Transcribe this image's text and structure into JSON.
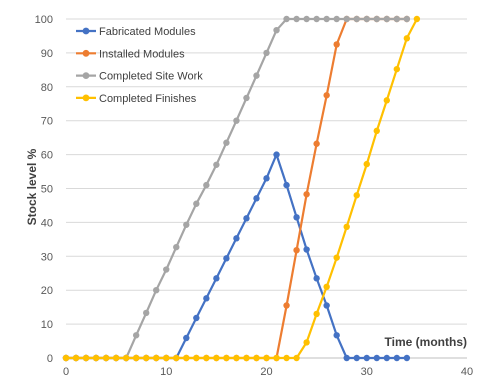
{
  "chart_data": {
    "type": "line",
    "title": "",
    "xlabel": "Time (months)",
    "ylabel": "Stock level %",
    "xlim": [
      0,
      40
    ],
    "ylim": [
      0,
      100
    ],
    "x_ticks": [
      0,
      10,
      20,
      30,
      40
    ],
    "y_ticks": [
      0,
      10,
      20,
      30,
      40,
      50,
      60,
      70,
      80,
      90,
      100
    ],
    "grid": "horizontal",
    "legend_position": "top-left",
    "series": [
      {
        "name": "Fabricated Modules",
        "color": "#4472c4",
        "points": [
          [
            0,
            0
          ],
          [
            1,
            0
          ],
          [
            2,
            0
          ],
          [
            3,
            0
          ],
          [
            4,
            0
          ],
          [
            5,
            0
          ],
          [
            6,
            0
          ],
          [
            7,
            0
          ],
          [
            8,
            0
          ],
          [
            9,
            0
          ],
          [
            10,
            0
          ],
          [
            11,
            0
          ],
          [
            12,
            5.9
          ],
          [
            13,
            11.8
          ],
          [
            14,
            17.6
          ],
          [
            15,
            23.5
          ],
          [
            16,
            29.4
          ],
          [
            17,
            35.3
          ],
          [
            18,
            41.2
          ],
          [
            19,
            47.1
          ],
          [
            20,
            53
          ],
          [
            21,
            60
          ],
          [
            22,
            51
          ],
          [
            23,
            41.5
          ],
          [
            24,
            32
          ],
          [
            25,
            23.5
          ],
          [
            26,
            15.5
          ],
          [
            27,
            6.7
          ],
          [
            28,
            0
          ],
          [
            29,
            0
          ],
          [
            30,
            0
          ],
          [
            31,
            0
          ],
          [
            32,
            0
          ],
          [
            33,
            0
          ],
          [
            34,
            0
          ]
        ]
      },
      {
        "name": "Installed Modules",
        "color": "#ed7d31",
        "points": [
          [
            0,
            0
          ],
          [
            1,
            0
          ],
          [
            2,
            0
          ],
          [
            3,
            0
          ],
          [
            4,
            0
          ],
          [
            5,
            0
          ],
          [
            6,
            0
          ],
          [
            7,
            0
          ],
          [
            8,
            0
          ],
          [
            9,
            0
          ],
          [
            10,
            0
          ],
          [
            11,
            0
          ],
          [
            12,
            0
          ],
          [
            13,
            0
          ],
          [
            14,
            0
          ],
          [
            15,
            0
          ],
          [
            16,
            0
          ],
          [
            17,
            0
          ],
          [
            18,
            0
          ],
          [
            19,
            0
          ],
          [
            20,
            0
          ],
          [
            21,
            0
          ],
          [
            22,
            15.5
          ],
          [
            23,
            31.8
          ],
          [
            24,
            48.3
          ],
          [
            25,
            63.2
          ],
          [
            26,
            77.5
          ],
          [
            27,
            92.5
          ],
          [
            28,
            100
          ],
          [
            29,
            100
          ],
          [
            30,
            100
          ],
          [
            31,
            100
          ],
          [
            32,
            100
          ],
          [
            33,
            100
          ],
          [
            34,
            100
          ]
        ]
      },
      {
        "name": "Completed Site Work",
        "color": "#a5a5a5",
        "points": [
          [
            0,
            0
          ],
          [
            1,
            0
          ],
          [
            2,
            0
          ],
          [
            3,
            0
          ],
          [
            4,
            0
          ],
          [
            5,
            0
          ],
          [
            6,
            0
          ],
          [
            7,
            6.7
          ],
          [
            8,
            13.3
          ],
          [
            9,
            20
          ],
          [
            10,
            26.1
          ],
          [
            11,
            32.7
          ],
          [
            12,
            39.3
          ],
          [
            13,
            45.5
          ],
          [
            14,
            51
          ],
          [
            15,
            57
          ],
          [
            16,
            63.5
          ],
          [
            17,
            70
          ],
          [
            18,
            76.7
          ],
          [
            19,
            83.3
          ],
          [
            20,
            90
          ],
          [
            21,
            96.7
          ],
          [
            22,
            100
          ],
          [
            23,
            100
          ],
          [
            24,
            100
          ],
          [
            25,
            100
          ],
          [
            26,
            100
          ],
          [
            27,
            100
          ],
          [
            28,
            100
          ],
          [
            29,
            100
          ],
          [
            30,
            100
          ],
          [
            31,
            100
          ],
          [
            32,
            100
          ],
          [
            33,
            100
          ],
          [
            34,
            100
          ]
        ]
      },
      {
        "name": "Completed Finishes",
        "color": "#ffc000",
        "points": [
          [
            0,
            0
          ],
          [
            1,
            0
          ],
          [
            2,
            0
          ],
          [
            3,
            0
          ],
          [
            4,
            0
          ],
          [
            5,
            0
          ],
          [
            6,
            0
          ],
          [
            7,
            0
          ],
          [
            8,
            0
          ],
          [
            9,
            0
          ],
          [
            10,
            0
          ],
          [
            11,
            0
          ],
          [
            12,
            0
          ],
          [
            13,
            0
          ],
          [
            14,
            0
          ],
          [
            15,
            0
          ],
          [
            16,
            0
          ],
          [
            17,
            0
          ],
          [
            18,
            0
          ],
          [
            19,
            0
          ],
          [
            20,
            0
          ],
          [
            21,
            0
          ],
          [
            22,
            0
          ],
          [
            23,
            0
          ],
          [
            24,
            4.6
          ],
          [
            25,
            13
          ],
          [
            26,
            21
          ],
          [
            27,
            29.6
          ],
          [
            28,
            38.7
          ],
          [
            29,
            48
          ],
          [
            30,
            57.2
          ],
          [
            31,
            67
          ],
          [
            32,
            76
          ],
          [
            33,
            85.2
          ],
          [
            34,
            94.3
          ],
          [
            35,
            100
          ]
        ]
      }
    ]
  }
}
